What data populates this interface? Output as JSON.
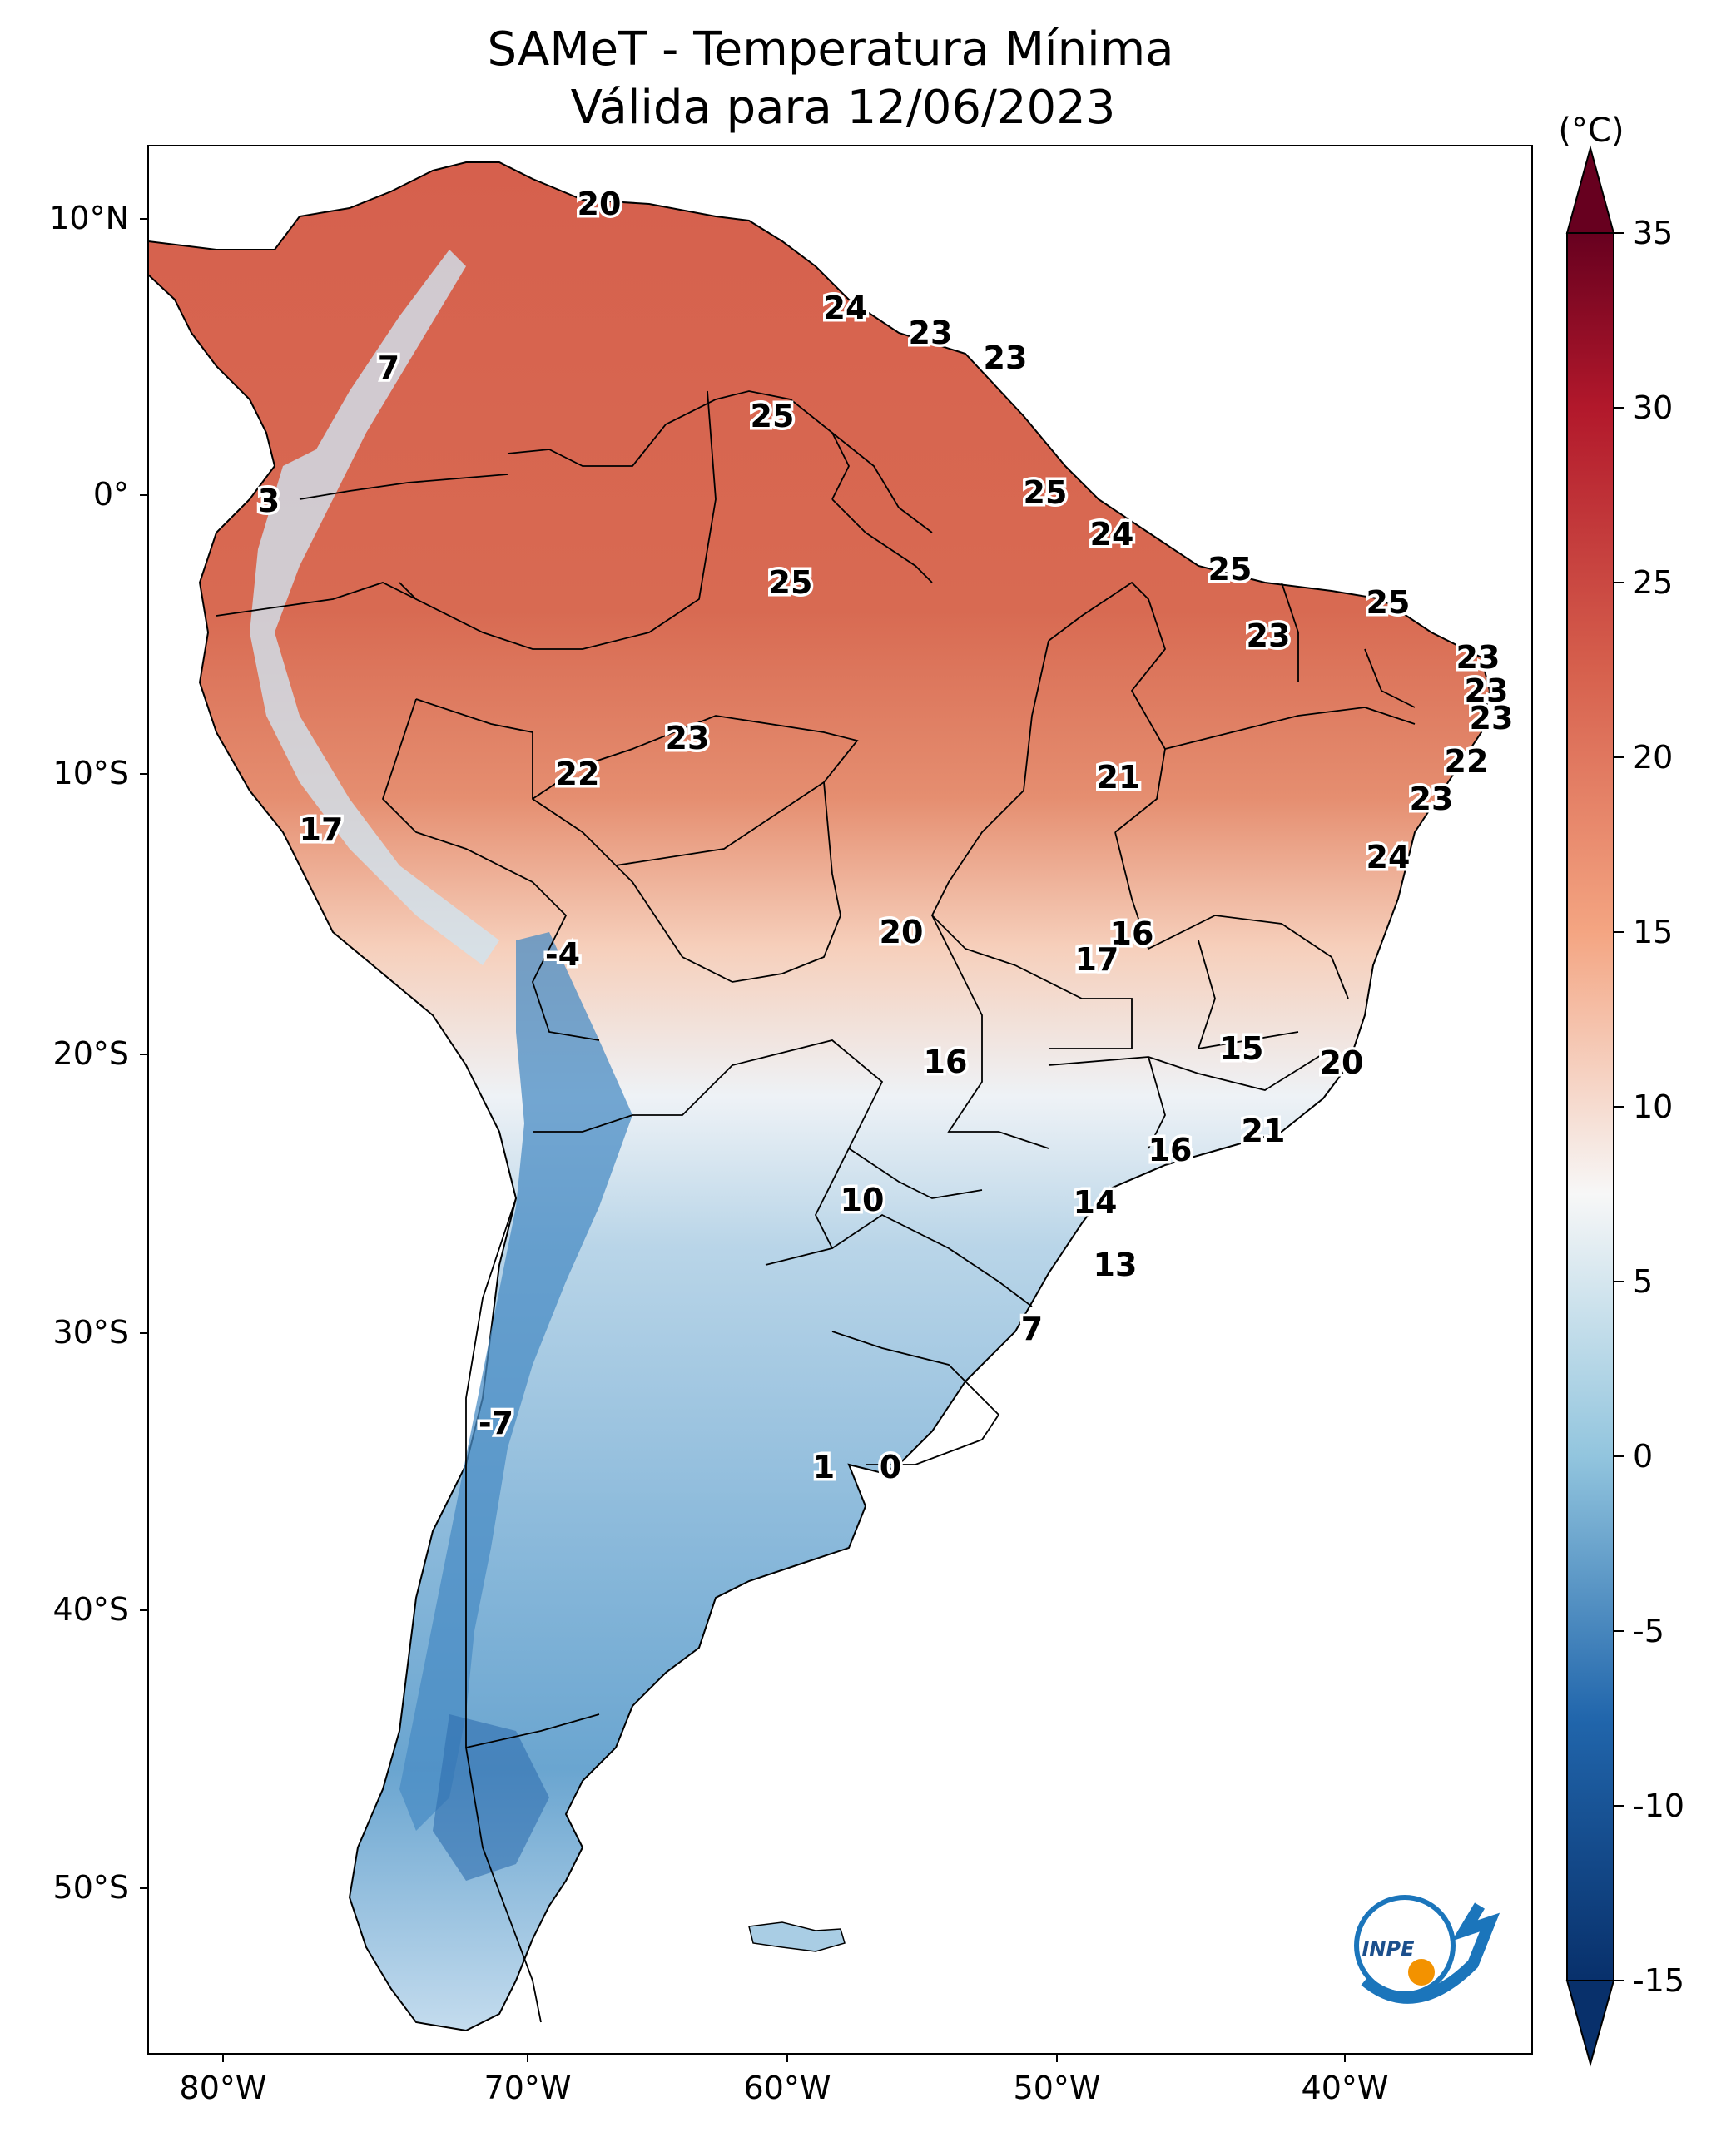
{
  "title": {
    "line1": "SAMeT - Temperatura Mínima",
    "line2": "Válida para 12/06/2023"
  },
  "axes": {
    "lon_ticks": [
      "80°W",
      "70°W",
      "60°W",
      "50°W",
      "40°W"
    ],
    "lat_ticks": [
      "10°N",
      "0°",
      "10°S",
      "20°S",
      "30°S",
      "40°S",
      "50°S"
    ]
  },
  "colorbar": {
    "units": "(°C)",
    "ticks": [
      "35",
      "30",
      "25",
      "20",
      "15",
      "10",
      "5",
      "0",
      "-5",
      "-10",
      "-15"
    ],
    "range": [
      -15,
      35
    ],
    "colors": {
      "min": "#08306b",
      "cold": "#2166ac",
      "cool": "#92c5de",
      "neutral": "#f7f7f7",
      "mild": "#f4a582",
      "warm": "#d6604d",
      "hot": "#b2182b",
      "max": "#67001f"
    }
  },
  "map_values": [
    {
      "value": "20"
    },
    {
      "value": "24"
    },
    {
      "value": "23"
    },
    {
      "value": "23"
    },
    {
      "value": "7"
    },
    {
      "value": "25"
    },
    {
      "value": "3"
    },
    {
      "value": "25"
    },
    {
      "value": "25"
    },
    {
      "value": "24"
    },
    {
      "value": "25"
    },
    {
      "value": "25"
    },
    {
      "value": "23"
    },
    {
      "value": "23"
    },
    {
      "value": "23"
    },
    {
      "value": "23"
    },
    {
      "value": "23"
    },
    {
      "value": "22"
    },
    {
      "value": "22"
    },
    {
      "value": "21"
    },
    {
      "value": "23"
    },
    {
      "value": "17"
    },
    {
      "value": "24"
    },
    {
      "value": "-4"
    },
    {
      "value": "20"
    },
    {
      "value": "16"
    },
    {
      "value": "17"
    },
    {
      "value": "16"
    },
    {
      "value": "15"
    },
    {
      "value": "20"
    },
    {
      "value": "21"
    },
    {
      "value": "16"
    },
    {
      "value": "10"
    },
    {
      "value": "14"
    },
    {
      "value": "13"
    },
    {
      "value": "7"
    },
    {
      "value": "-7"
    },
    {
      "value": "1"
    },
    {
      "value": "0"
    }
  ],
  "logo": {
    "text": "INPE"
  }
}
